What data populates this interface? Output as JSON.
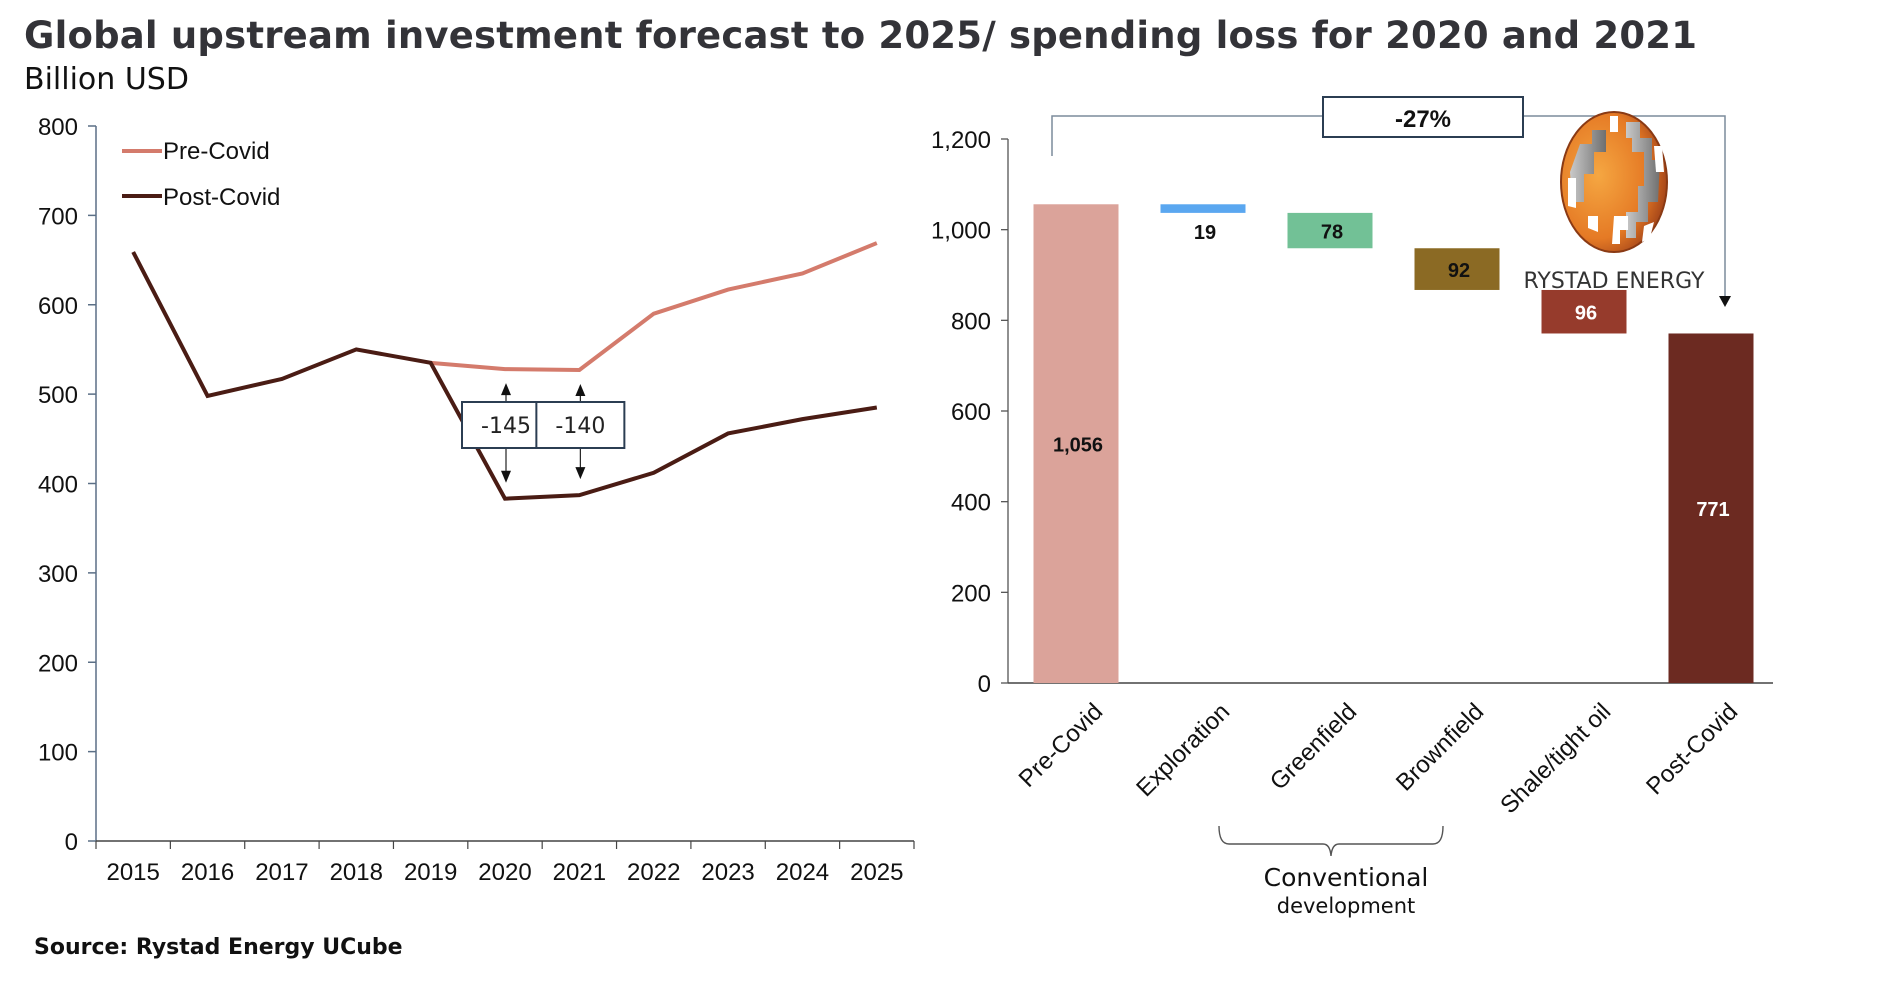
{
  "title": "Global upstream investment forecast to 2025/ spending loss for 2020 and 2021",
  "subtitle": "Billion USD",
  "source": "Source: Rystad Energy UCube",
  "logo": {
    "text": "RYSTAD ENERGY",
    "icon": "globe-logo-icon"
  },
  "colors": {
    "pre_covid_line": "#d47b6c",
    "post_covid_line": "#4a1c14",
    "axis": "#5b6f86"
  },
  "chart_data": [
    {
      "type": "line",
      "title": "",
      "xlabel": "",
      "ylabel": "Billion USD",
      "ylim": [
        0,
        800
      ],
      "yticks": [
        0,
        100,
        200,
        300,
        400,
        500,
        600,
        700,
        800
      ],
      "x": [
        "2015",
        "2016",
        "2017",
        "2018",
        "2019",
        "2020",
        "2021",
        "2022",
        "2023",
        "2024",
        "2025"
      ],
      "legend": "top-left",
      "grid": false,
      "series": [
        {
          "name": "Pre-Covid",
          "color": "#d47b6c",
          "values": [
            null,
            null,
            null,
            null,
            535,
            528,
            527,
            590,
            617,
            635,
            669
          ]
        },
        {
          "name": "Post-Covid",
          "color": "#4a1c14",
          "values": [
            659,
            498,
            517,
            550,
            535,
            383,
            387,
            412,
            456,
            472,
            485
          ]
        }
      ],
      "annotations": [
        {
          "x": "2020",
          "text": "-145"
        },
        {
          "x": "2021",
          "text": "-140"
        }
      ]
    },
    {
      "type": "bar",
      "subtype": "waterfall",
      "title": "",
      "ylim": [
        0,
        1200
      ],
      "yticks": [
        "0",
        "200",
        "400",
        "600",
        "800",
        "1,000",
        "1,200"
      ],
      "ytick_values": [
        0,
        200,
        400,
        600,
        800,
        1000,
        1200
      ],
      "categories": [
        "Pre-Covid",
        "Exploration",
        "Greenfield",
        "Brownfield",
        "Shale/tight oil",
        "Post-Covid"
      ],
      "bars": [
        {
          "name": "Pre-Covid",
          "kind": "total",
          "value": 1056,
          "label": "1,056",
          "color": "#dba39a",
          "label_color": "#111111"
        },
        {
          "name": "Exploration",
          "kind": "decrease",
          "value": 19,
          "label": "19",
          "color": "#5aa7f0",
          "label_color": "#111111"
        },
        {
          "name": "Greenfield",
          "kind": "decrease",
          "value": 78,
          "label": "78",
          "color": "#72c196",
          "label_color": "#111111"
        },
        {
          "name": "Brownfield",
          "kind": "decrease",
          "value": 92,
          "label": "92",
          "color": "#8b6a24",
          "label_color": "#111111"
        },
        {
          "name": "Shale/tight oil",
          "kind": "decrease",
          "value": 96,
          "label": "96",
          "color": "#963b2c",
          "label_color": "#ffffff"
        },
        {
          "name": "Post-Covid",
          "kind": "total",
          "value": 771,
          "label": "771",
          "color": "#6c2a21",
          "label_color": "#ffffff"
        }
      ],
      "change_annotation": {
        "text": "-27%",
        "from": "Pre-Covid",
        "to": "Post-Covid"
      },
      "group_bracket": {
        "line1": "Conventional",
        "line2": "development",
        "categories": [
          "Greenfield",
          "Brownfield"
        ]
      }
    }
  ]
}
